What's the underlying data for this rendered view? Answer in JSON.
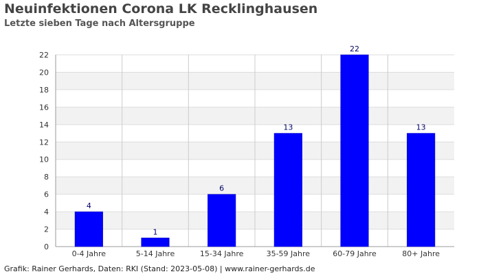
{
  "chart_data": {
    "type": "bar",
    "title": "Neuinfektionen Corona LK Recklinghausen",
    "subtitle": "Letzte sieben Tage nach Altersgruppe",
    "xlabel": "",
    "ylabel": "",
    "categories": [
      "0-4 Jahre",
      "5-14 Jahre",
      "15-34 Jahre",
      "35-59 Jahre",
      "60-79 Jahre",
      "80+ Jahre"
    ],
    "values": [
      4,
      1,
      6,
      13,
      22,
      13
    ],
    "data_labels": [
      "4",
      "1",
      "6",
      "13",
      "22",
      "13"
    ],
    "ylim": [
      0,
      22
    ],
    "yticks": [
      0,
      2,
      4,
      6,
      8,
      10,
      12,
      14,
      16,
      18,
      20,
      22
    ],
    "grid": true,
    "legend": "none",
    "bar_color": "#0000ff",
    "band_color": "#f2f2f2",
    "data_label_color": "#000066"
  },
  "footer": "Grafik: Rainer Gerhards, Daten: RKI (Stand: 2023-05-08) | www.rainer-gerhards.de"
}
